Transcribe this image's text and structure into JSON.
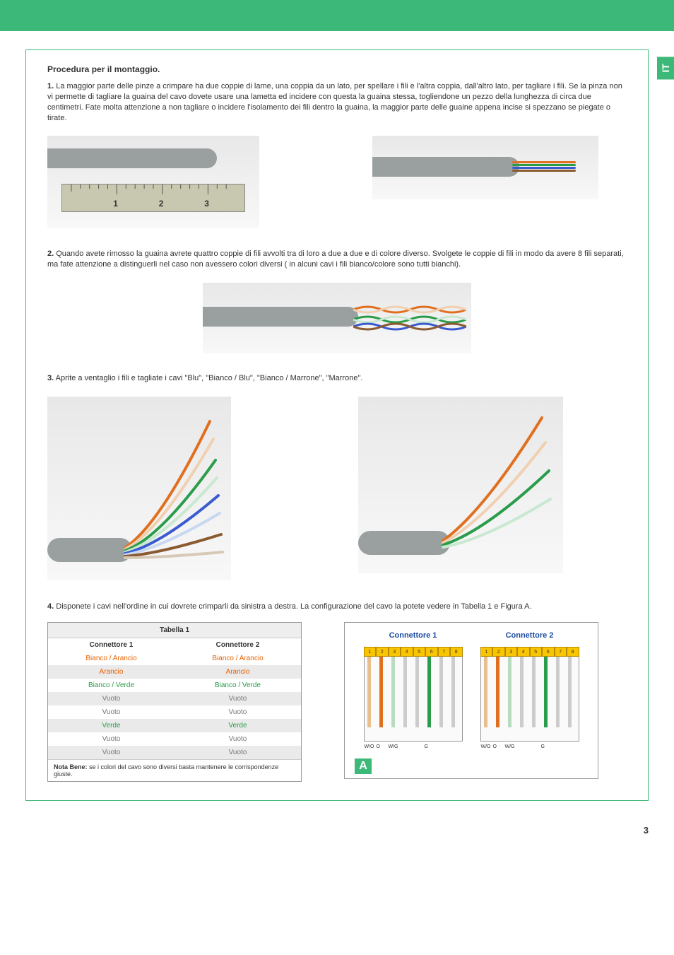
{
  "sideTab": "IT",
  "pageNumber": "3",
  "title": "Procedura per il montaggio.",
  "steps": {
    "s1": {
      "num": "1.",
      "text": "La maggior parte delle pinze a crimpare ha due coppie di lame, una coppia da un lato, per spellare i fili e l'altra coppia, dall'altro lato, per tagliare i fili. Se la pinza non vi permette di tagliare la guaina del cavo dovete usare una lametta ed incidere con questa la guaina stessa, togliendone un pezzo della lunghezza di circa due centimetri. Fate molta attenzione a non tagliare o incidere l'isolamento dei fili dentro la guaina, la maggior parte delle guaine appena incise si spezzano se piegate o tirate."
    },
    "s2": {
      "num": "2.",
      "text": "Quando avete rimosso la guaina avrete quattro coppie di fili avvolti tra di loro a due a due e di colore diverso. Svolgete le coppie di fili in modo da avere 8 fili separati, ma fate attenzione a distinguerli nel caso non avessero colori diversi ( in alcuni cavi i fili bianco/colore sono tutti bianchi)."
    },
    "s3": {
      "num": "3.",
      "text": "Aprite a ventaglio i fili  e tagliate i cavi \"Blu\", \"Bianco / Blu\", \"Bianco / Marrone\", \"Marrone\"."
    },
    "s4": {
      "num": "4.",
      "text": "Disponete i cavi nell'ordine in cui dovrete crimparli da sinistra a destra. La configurazione del cavo la potete vedere in Tabella 1 e Figura A."
    }
  },
  "ruler": {
    "n1": "1",
    "n2": "2",
    "n3": "3"
  },
  "table": {
    "title": "Tabella 1",
    "col1": "Connettore 1",
    "col2": "Connettore 2",
    "rows": [
      {
        "a": "Bianco / Arancio",
        "b": "Bianco / Arancio",
        "cls": "c-orange"
      },
      {
        "a": "Arancio",
        "b": "Arancio",
        "cls": "c-orange",
        "alt": true
      },
      {
        "a": "Bianco / Verde",
        "b": "Bianco / Verde",
        "cls": "c-green"
      },
      {
        "a": "Vuoto",
        "b": "Vuoto",
        "cls": "c-grey",
        "alt": true
      },
      {
        "a": "Vuoto",
        "b": "Vuoto",
        "cls": "c-grey"
      },
      {
        "a": "Verde",
        "b": "Verde",
        "cls": "c-green",
        "alt": true
      },
      {
        "a": "Vuoto",
        "b": "Vuoto",
        "cls": "c-grey"
      },
      {
        "a": "Vuoto",
        "b": "Vuoto",
        "cls": "c-grey",
        "alt": true
      }
    ],
    "noteBold": "Nota Bene:",
    "noteText": " se i colori del cavo sono diversi basta mantenere le corrispondenze giuste."
  },
  "figure": {
    "h1": "Connettore 1",
    "h2": "Connettore 2",
    "pins": [
      "1",
      "2",
      "3",
      "4",
      "5",
      "6",
      "7",
      "8"
    ],
    "wireColors": {
      "wo": "#e8c090",
      "o": "#e07020",
      "wg": "#b8dcc0",
      "g": "#2a9c4a",
      "grey": "#cccccc"
    },
    "labels": {
      "wo": "W/O",
      "o": "O",
      "wg": "W/G",
      "g": "G"
    },
    "tag": "A"
  },
  "colors": {
    "brand": "#3cb878",
    "cable": "#9aa0a0"
  }
}
